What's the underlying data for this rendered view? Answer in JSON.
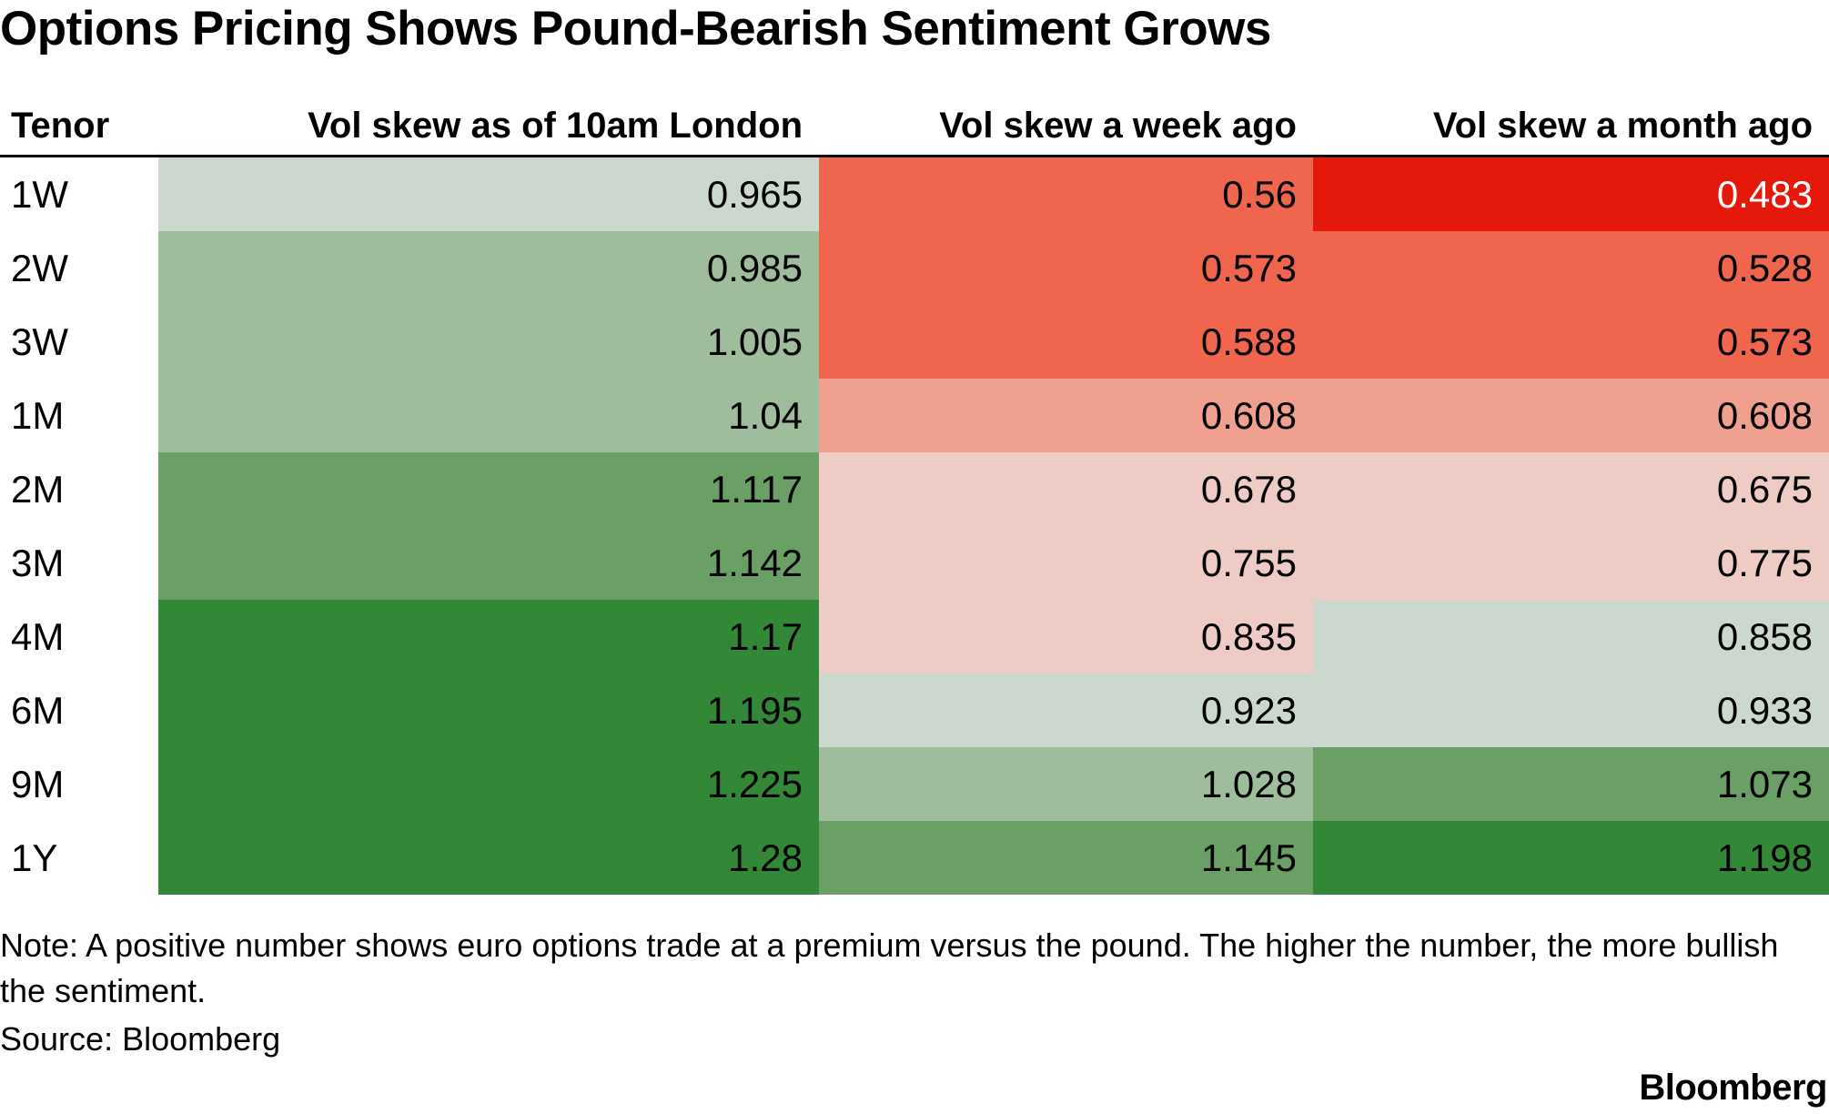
{
  "title": "Options Pricing Shows Pound-Bearish Sentiment Grows",
  "note": "Note: A positive number shows euro options trade at a premium versus the pound. The higher the number, the more bullish the sentiment.",
  "source": "Source: Bloomberg",
  "logo": "Bloomberg",
  "colors": {
    "strong_green": "#338838",
    "medium_green": "#6a9f65",
    "light_green": "#9fbd9c",
    "pale_green": "#ccd8cd",
    "pale_red": "#efcbc6",
    "light_red": "#f0a08f",
    "medium_red": "#ef654e",
    "strong_red": "#e4190b",
    "text_dark": "#000000",
    "text_light": "#ffffff"
  },
  "chart_data": {
    "type": "table",
    "columns": [
      "Tenor",
      "Vol skew as of 10am London",
      "Vol skew a week ago",
      "Vol skew a month ago"
    ],
    "rows": [
      {
        "tenor": "1W",
        "values": [
          "0.965",
          "0.56",
          "0.483"
        ]
      },
      {
        "tenor": "2W",
        "values": [
          "0.985",
          "0.573",
          "0.528"
        ]
      },
      {
        "tenor": "3W",
        "values": [
          "1.005",
          "0.588",
          "0.573"
        ]
      },
      {
        "tenor": "1M",
        "values": [
          "1.04",
          "0.608",
          "0.608"
        ]
      },
      {
        "tenor": "2M",
        "values": [
          "1.117",
          "0.678",
          "0.675"
        ]
      },
      {
        "tenor": "3M",
        "values": [
          "1.142",
          "0.755",
          "0.775"
        ]
      },
      {
        "tenor": "4M",
        "values": [
          "1.17",
          "0.835",
          "0.858"
        ]
      },
      {
        "tenor": "6M",
        "values": [
          "1.195",
          "0.923",
          "0.933"
        ]
      },
      {
        "tenor": "9M",
        "values": [
          "1.225",
          "1.028",
          "1.073"
        ]
      },
      {
        "tenor": "1Y",
        "values": [
          "1.28",
          "1.145",
          "1.198"
        ]
      }
    ]
  }
}
